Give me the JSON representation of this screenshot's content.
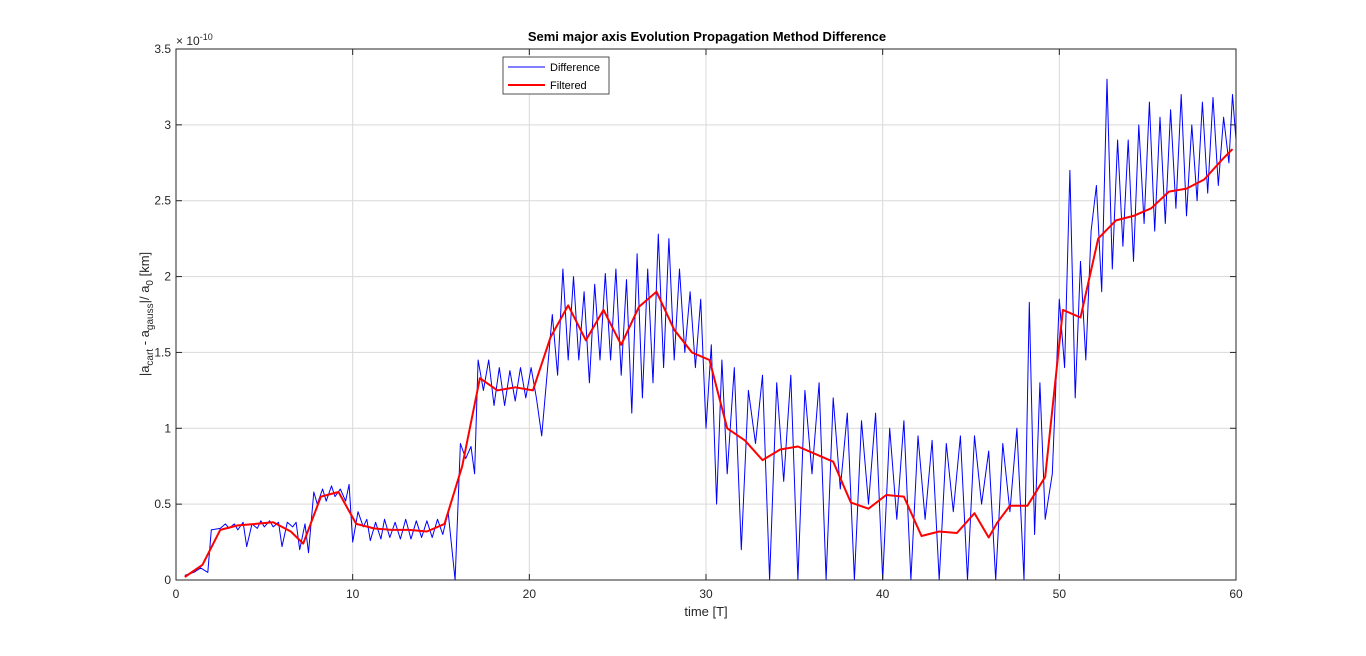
{
  "chart_data": {
    "type": "line",
    "title": "Semi major axis Evolution Propagation Method Difference",
    "xlabel": "time [T]",
    "ylabel": {
      "p1": "|a",
      "s1": "cart",
      "p2": " - a",
      "s2": "gauss",
      "p3": "|/ a",
      "s3": "0",
      "p4": " [km]"
    },
    "y_exponent": {
      "base": "× 10",
      "power": "-10"
    },
    "xlim": [
      0,
      60
    ],
    "ylim": [
      0,
      3.5
    ],
    "x_ticks": [
      "0",
      "10",
      "20",
      "30",
      "40",
      "50",
      "60"
    ],
    "y_ticks": [
      "0",
      "0.5",
      "1",
      "1.5",
      "2",
      "2.5",
      "3",
      "3.5"
    ],
    "grid": true,
    "legend_position": "top-center",
    "colors": {
      "difference": "#0000ff",
      "filtered": "#ff0000",
      "grid": "#d9d9d9",
      "axes": "#262626"
    },
    "series": [
      {
        "name": "Difference",
        "points": [
          [
            0.5,
            0.03
          ],
          [
            1.0,
            0.05
          ],
          [
            1.4,
            0.08
          ],
          [
            1.8,
            0.05
          ],
          [
            2.0,
            0.33
          ],
          [
            2.5,
            0.34
          ],
          [
            2.8,
            0.37
          ],
          [
            3.0,
            0.34
          ],
          [
            3.3,
            0.37
          ],
          [
            3.5,
            0.33
          ],
          [
            3.8,
            0.38
          ],
          [
            4.0,
            0.22
          ],
          [
            4.3,
            0.37
          ],
          [
            4.6,
            0.34
          ],
          [
            4.8,
            0.39
          ],
          [
            5.0,
            0.35
          ],
          [
            5.3,
            0.39
          ],
          [
            5.5,
            0.35
          ],
          [
            5.8,
            0.38
          ],
          [
            6.0,
            0.22
          ],
          [
            6.3,
            0.38
          ],
          [
            6.6,
            0.35
          ],
          [
            6.8,
            0.38
          ],
          [
            7.0,
            0.2
          ],
          [
            7.3,
            0.37
          ],
          [
            7.5,
            0.18
          ],
          [
            7.8,
            0.58
          ],
          [
            8.0,
            0.5
          ],
          [
            8.3,
            0.6
          ],
          [
            8.5,
            0.52
          ],
          [
            8.8,
            0.62
          ],
          [
            9.0,
            0.55
          ],
          [
            9.3,
            0.6
          ],
          [
            9.6,
            0.52
          ],
          [
            9.8,
            0.63
          ],
          [
            10.0,
            0.25
          ],
          [
            10.3,
            0.45
          ],
          [
            10.6,
            0.35
          ],
          [
            10.8,
            0.4
          ],
          [
            11.0,
            0.26
          ],
          [
            11.3,
            0.38
          ],
          [
            11.6,
            0.27
          ],
          [
            11.8,
            0.4
          ],
          [
            12.1,
            0.28
          ],
          [
            12.4,
            0.38
          ],
          [
            12.7,
            0.27
          ],
          [
            13.0,
            0.4
          ],
          [
            13.3,
            0.27
          ],
          [
            13.6,
            0.39
          ],
          [
            13.9,
            0.28
          ],
          [
            14.2,
            0.39
          ],
          [
            14.5,
            0.28
          ],
          [
            14.8,
            0.4
          ],
          [
            15.1,
            0.3
          ],
          [
            15.4,
            0.45
          ],
          [
            15.8,
            0.0
          ],
          [
            16.1,
            0.9
          ],
          [
            16.4,
            0.8
          ],
          [
            16.7,
            0.88
          ],
          [
            16.9,
            0.7
          ],
          [
            17.1,
            1.45
          ],
          [
            17.4,
            1.25
          ],
          [
            17.7,
            1.45
          ],
          [
            18.0,
            1.15
          ],
          [
            18.3,
            1.4
          ],
          [
            18.6,
            1.15
          ],
          [
            18.9,
            1.38
          ],
          [
            19.2,
            1.18
          ],
          [
            19.5,
            1.4
          ],
          [
            19.8,
            1.2
          ],
          [
            20.1,
            1.4
          ],
          [
            20.4,
            1.2
          ],
          [
            20.7,
            0.95
          ],
          [
            21.0,
            1.35
          ],
          [
            21.3,
            1.75
          ],
          [
            21.6,
            1.35
          ],
          [
            21.9,
            2.05
          ],
          [
            22.2,
            1.45
          ],
          [
            22.5,
            2.0
          ],
          [
            22.8,
            1.45
          ],
          [
            23.1,
            1.9
          ],
          [
            23.4,
            1.3
          ],
          [
            23.7,
            1.95
          ],
          [
            24.0,
            1.45
          ],
          [
            24.3,
            2.02
          ],
          [
            24.6,
            1.45
          ],
          [
            24.9,
            2.05
          ],
          [
            25.2,
            1.35
          ],
          [
            25.5,
            1.98
          ],
          [
            25.8,
            1.1
          ],
          [
            26.1,
            2.15
          ],
          [
            26.4,
            1.2
          ],
          [
            26.7,
            2.05
          ],
          [
            27.0,
            1.3
          ],
          [
            27.3,
            2.28
          ],
          [
            27.6,
            1.4
          ],
          [
            27.9,
            2.25
          ],
          [
            28.2,
            1.45
          ],
          [
            28.5,
            2.05
          ],
          [
            28.8,
            1.5
          ],
          [
            29.1,
            1.9
          ],
          [
            29.4,
            1.4
          ],
          [
            29.7,
            1.85
          ],
          [
            30.0,
            1.0
          ],
          [
            30.3,
            1.55
          ],
          [
            30.6,
            0.5
          ],
          [
            30.9,
            1.45
          ],
          [
            31.2,
            0.7
          ],
          [
            31.6,
            1.4
          ],
          [
            32.0,
            0.2
          ],
          [
            32.4,
            1.25
          ],
          [
            32.8,
            0.9
          ],
          [
            33.2,
            1.35
          ],
          [
            33.6,
            0.0
          ],
          [
            34.0,
            1.3
          ],
          [
            34.4,
            0.65
          ],
          [
            34.8,
            1.35
          ],
          [
            35.2,
            0.0
          ],
          [
            35.6,
            1.25
          ],
          [
            36.0,
            0.7
          ],
          [
            36.4,
            1.3
          ],
          [
            36.8,
            0.0
          ],
          [
            37.2,
            1.2
          ],
          [
            37.6,
            0.6
          ],
          [
            38.0,
            1.1
          ],
          [
            38.4,
            0.0
          ],
          [
            38.8,
            1.05
          ],
          [
            39.2,
            0.5
          ],
          [
            39.6,
            1.1
          ],
          [
            40.0,
            0.0
          ],
          [
            40.4,
            1.0
          ],
          [
            40.8,
            0.4
          ],
          [
            41.2,
            1.05
          ],
          [
            41.6,
            0.0
          ],
          [
            42.0,
            0.95
          ],
          [
            42.4,
            0.4
          ],
          [
            42.8,
            0.92
          ],
          [
            43.2,
            0.0
          ],
          [
            43.6,
            0.9
          ],
          [
            44.0,
            0.45
          ],
          [
            44.4,
            0.95
          ],
          [
            44.8,
            0.0
          ],
          [
            45.2,
            0.95
          ],
          [
            45.6,
            0.5
          ],
          [
            46.0,
            0.85
          ],
          [
            46.4,
            0.0
          ],
          [
            46.8,
            0.9
          ],
          [
            47.2,
            0.45
          ],
          [
            47.6,
            1.0
          ],
          [
            48.0,
            0.0
          ],
          [
            48.3,
            1.83
          ],
          [
            48.6,
            0.3
          ],
          [
            48.9,
            1.3
          ],
          [
            49.2,
            0.4
          ],
          [
            49.6,
            0.7
          ],
          [
            50.0,
            1.85
          ],
          [
            50.3,
            1.4
          ],
          [
            50.6,
            2.7
          ],
          [
            50.9,
            1.2
          ],
          [
            51.2,
            2.1
          ],
          [
            51.5,
            1.45
          ],
          [
            51.8,
            2.3
          ],
          [
            52.1,
            2.6
          ],
          [
            52.4,
            1.9
          ],
          [
            52.7,
            3.3
          ],
          [
            53.0,
            2.05
          ],
          [
            53.3,
            2.9
          ],
          [
            53.6,
            2.2
          ],
          [
            53.9,
            2.9
          ],
          [
            54.2,
            2.1
          ],
          [
            54.5,
            3.0
          ],
          [
            54.8,
            2.35
          ],
          [
            55.1,
            3.15
          ],
          [
            55.4,
            2.3
          ],
          [
            55.7,
            3.05
          ],
          [
            56.0,
            2.35
          ],
          [
            56.3,
            3.1
          ],
          [
            56.6,
            2.45
          ],
          [
            56.9,
            3.2
          ],
          [
            57.2,
            2.4
          ],
          [
            57.5,
            3.0
          ],
          [
            57.8,
            2.5
          ],
          [
            58.1,
            3.15
          ],
          [
            58.4,
            2.55
          ],
          [
            58.7,
            3.18
          ],
          [
            59.0,
            2.6
          ],
          [
            59.3,
            3.05
          ],
          [
            59.6,
            2.75
          ],
          [
            59.8,
            3.2
          ],
          [
            60.0,
            2.9
          ]
        ]
      },
      {
        "name": "Filtered",
        "points": [
          [
            0.5,
            0.02
          ],
          [
            1.5,
            0.1
          ],
          [
            2.5,
            0.33
          ],
          [
            3.5,
            0.36
          ],
          [
            4.5,
            0.37
          ],
          [
            5.5,
            0.38
          ],
          [
            6.5,
            0.32
          ],
          [
            7.2,
            0.24
          ],
          [
            8.2,
            0.55
          ],
          [
            9.2,
            0.58
          ],
          [
            10.2,
            0.37
          ],
          [
            11.2,
            0.34
          ],
          [
            12.2,
            0.33
          ],
          [
            13.2,
            0.33
          ],
          [
            14.2,
            0.32
          ],
          [
            15.2,
            0.37
          ],
          [
            16.2,
            0.75
          ],
          [
            17.2,
            1.33
          ],
          [
            18.2,
            1.25
          ],
          [
            19.2,
            1.27
          ],
          [
            20.2,
            1.25
          ],
          [
            21.2,
            1.6
          ],
          [
            22.2,
            1.81
          ],
          [
            23.2,
            1.58
          ],
          [
            24.2,
            1.78
          ],
          [
            25.2,
            1.55
          ],
          [
            26.2,
            1.8
          ],
          [
            27.2,
            1.9
          ],
          [
            28.2,
            1.65
          ],
          [
            29.2,
            1.5
          ],
          [
            30.2,
            1.45
          ],
          [
            31.2,
            1.0
          ],
          [
            32.2,
            0.92
          ],
          [
            33.2,
            0.79
          ],
          [
            34.2,
            0.86
          ],
          [
            35.2,
            0.88
          ],
          [
            36.2,
            0.83
          ],
          [
            37.2,
            0.78
          ],
          [
            38.2,
            0.51
          ],
          [
            39.2,
            0.47
          ],
          [
            40.2,
            0.56
          ],
          [
            41.2,
            0.55
          ],
          [
            42.2,
            0.29
          ],
          [
            43.2,
            0.32
          ],
          [
            44.2,
            0.31
          ],
          [
            45.2,
            0.44
          ],
          [
            46.0,
            0.28
          ],
          [
            46.5,
            0.38
          ],
          [
            47.2,
            0.49
          ],
          [
            48.2,
            0.49
          ],
          [
            49.2,
            0.68
          ],
          [
            50.2,
            1.78
          ],
          [
            51.2,
            1.73
          ],
          [
            52.2,
            2.25
          ],
          [
            53.2,
            2.37
          ],
          [
            54.2,
            2.4
          ],
          [
            55.2,
            2.45
          ],
          [
            56.2,
            2.56
          ],
          [
            57.2,
            2.58
          ],
          [
            58.2,
            2.64
          ],
          [
            59.2,
            2.77
          ],
          [
            59.8,
            2.84
          ]
        ]
      }
    ]
  }
}
